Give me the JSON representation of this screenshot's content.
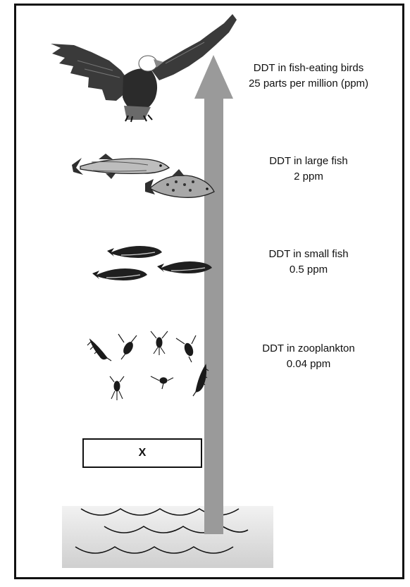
{
  "levels": [
    {
      "title": "DDT in fish-eating birds",
      "value": "25 parts per million (ppm)"
    },
    {
      "title": "DDT in large fish",
      "value": "2 ppm"
    },
    {
      "title": "DDT in small fish",
      "value": "0.5 ppm"
    },
    {
      "title": "DDT in zooplankton",
      "value": "0.04 ppm"
    }
  ],
  "unknown_box_label": "X",
  "icons": [
    "eagle-icon",
    "pike-icon",
    "trout-icon",
    "small-fish-icon",
    "zooplankton-icon",
    "water-icon",
    "arrow"
  ],
  "colors": {
    "arrow": "#9a9a9a",
    "water": "#d6d6d6",
    "ink": "#111111"
  }
}
